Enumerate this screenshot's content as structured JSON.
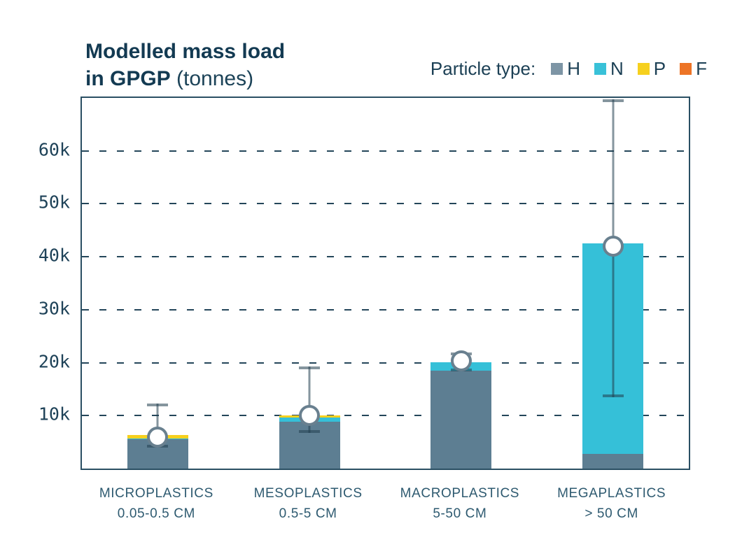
{
  "title": {
    "line1_bold": "Modelled mass load",
    "line2_bold": "in GPGP",
    "line2_regular": "(tonnes)"
  },
  "legend": {
    "label": "Particle type:",
    "items": [
      {
        "key": "H",
        "swatch": "#7d95a5"
      },
      {
        "key": "N",
        "swatch": "#39c1d8"
      },
      {
        "key": "P",
        "swatch": "#f6d01e"
      },
      {
        "key": "F",
        "swatch": "#ed7426"
      }
    ]
  },
  "chart_data": {
    "type": "bar",
    "stacked": true,
    "title": "Modelled mass load in GPGP (tonnes)",
    "unit": "tonnes",
    "ylim": [
      0,
      70000
    ],
    "yticks": [
      {
        "v": 10000,
        "label": "10k"
      },
      {
        "v": 20000,
        "label": "20k"
      },
      {
        "v": 30000,
        "label": "30k"
      },
      {
        "v": 40000,
        "label": "40k"
      },
      {
        "v": 50000,
        "label": "50k"
      },
      {
        "v": 60000,
        "label": "60k"
      }
    ],
    "grid": "horizontal-dashed",
    "legend_position": "top-right",
    "categories": [
      {
        "label": "MICROPLASTICS",
        "sublabel": "0.05-0.5 CM"
      },
      {
        "label": "MESOPLASTICS",
        "sublabel": "0.5-5 CM"
      },
      {
        "label": "MACROPLASTICS",
        "sublabel": "5-50 CM"
      },
      {
        "label": "MEGAPLASTICS",
        "sublabel": "> 50 CM"
      }
    ],
    "series": [
      {
        "name": "H",
        "color": "#5d7e92",
        "values": [
          5500,
          8800,
          18500,
          2800
        ]
      },
      {
        "name": "N",
        "color": "#35c0d8",
        "values": [
          200,
          900,
          1600,
          39700
        ]
      },
      {
        "name": "P",
        "color": "#f6d01e",
        "values": [
          700,
          300,
          0,
          0
        ]
      },
      {
        "name": "F",
        "color": "#ed7426",
        "values": [
          0,
          0,
          0,
          0
        ]
      }
    ],
    "stack_totals": [
      6400,
      10000,
      20100,
      42500
    ],
    "error_bars": {
      "point": [
        6000,
        10000,
        20300,
        42000
      ],
      "low": [
        4000,
        6800,
        18400,
        13500
      ],
      "high": [
        12300,
        19300,
        21900,
        69700
      ]
    }
  },
  "style": {
    "frame": "#2a4f63",
    "grid": "#24465a",
    "title_text": "#133a52",
    "tick_text": "#1e4258",
    "xlabel_text": "#2e5a70",
    "error_line": "rgba(32,62,78,0.55)",
    "error_circle_border": "#69808f",
    "background": "#ffffff"
  }
}
